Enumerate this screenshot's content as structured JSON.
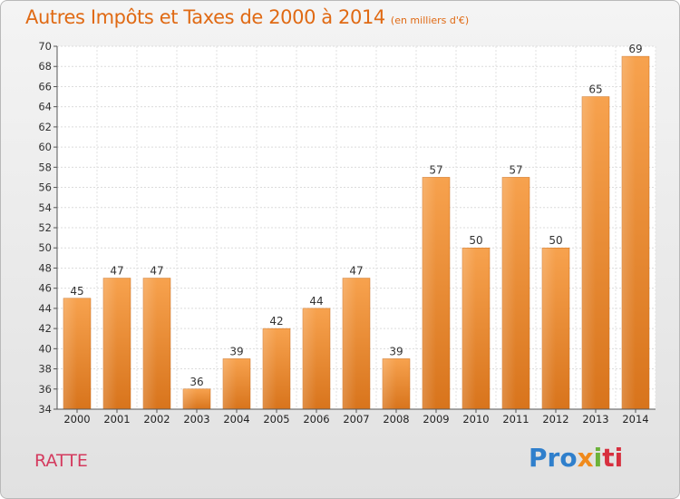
{
  "chart_data": {
    "type": "bar",
    "title": "Autres Impôts et Taxes de 2000 à 2014",
    "subtitle": "(en milliers d'€)",
    "categories": [
      "2000",
      "2001",
      "2002",
      "2003",
      "2004",
      "2005",
      "2006",
      "2007",
      "2008",
      "2009",
      "2010",
      "2011",
      "2012",
      "2013",
      "2014"
    ],
    "values": [
      45,
      47,
      47,
      36,
      39,
      42,
      44,
      47,
      39,
      57,
      50,
      57,
      50,
      65,
      69
    ],
    "ylim": [
      34,
      70
    ],
    "yticks": [
      34,
      36,
      38,
      40,
      42,
      44,
      46,
      48,
      50,
      52,
      54,
      56,
      58,
      60,
      62,
      64,
      66,
      68,
      70
    ],
    "grid": true,
    "bar_color": "#f0922e"
  },
  "footer": {
    "commune": "RATTE",
    "logo_parts": [
      "Pro",
      "x",
      "i",
      "ti"
    ]
  }
}
